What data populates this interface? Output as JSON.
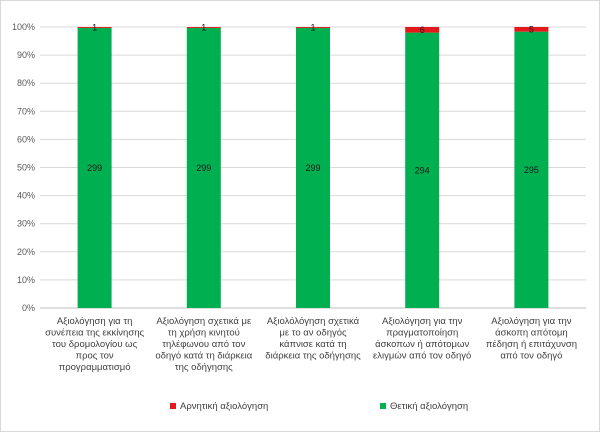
{
  "chart_data": {
    "type": "bar",
    "stacked": "percent",
    "categories": [
      [
        "Αξιολόγηση για τη",
        "συνέπεια της εκκίνησης",
        "του δρομολογίου ως",
        "προς τον",
        "προγραμματισμό"
      ],
      [
        "Αξιολόγηση σχετικά με",
        "τη χρήση κινητού",
        "τηλέφωνου από τον",
        "οδηγό κατά τη διάρκεια",
        "της οδήγησης"
      ],
      [
        "Αξιολόλόγηση σχετικά",
        "με το αν οδηγός",
        "κάπνισε κατά τη",
        "διάρκεια της οδήγησης"
      ],
      [
        "Αξιολόγηση για την",
        "πραγματοποίηση",
        "άσκοπων ή απότομων",
        "ελιγμών από τον οδηγό"
      ],
      [
        "Αξιολόγηση για την",
        "άσκοπη απότομη",
        "πέδηση ή επιτάχυνση",
        "από τον οδηγό"
      ]
    ],
    "series": [
      {
        "name": "Θετική αξιολόγηση",
        "color": "#00b050",
        "values": [
          299,
          299,
          299,
          294,
          295
        ]
      },
      {
        "name": "Αρνητική αξιολόγηση",
        "color": "#e31a1c",
        "values": [
          1,
          1,
          1,
          6,
          5
        ]
      }
    ],
    "y_ticks": [
      "0%",
      "10%",
      "20%",
      "30%",
      "40%",
      "50%",
      "60%",
      "70%",
      "80%",
      "90%",
      "100%"
    ],
    "ylim": [
      0,
      100
    ],
    "grid": true,
    "legend_position": "bottom",
    "legend_order": [
      "Αρνητική αξιολόγηση",
      "Θετική αξιολόγηση"
    ],
    "title": "",
    "xlabel": "",
    "ylabel": ""
  }
}
